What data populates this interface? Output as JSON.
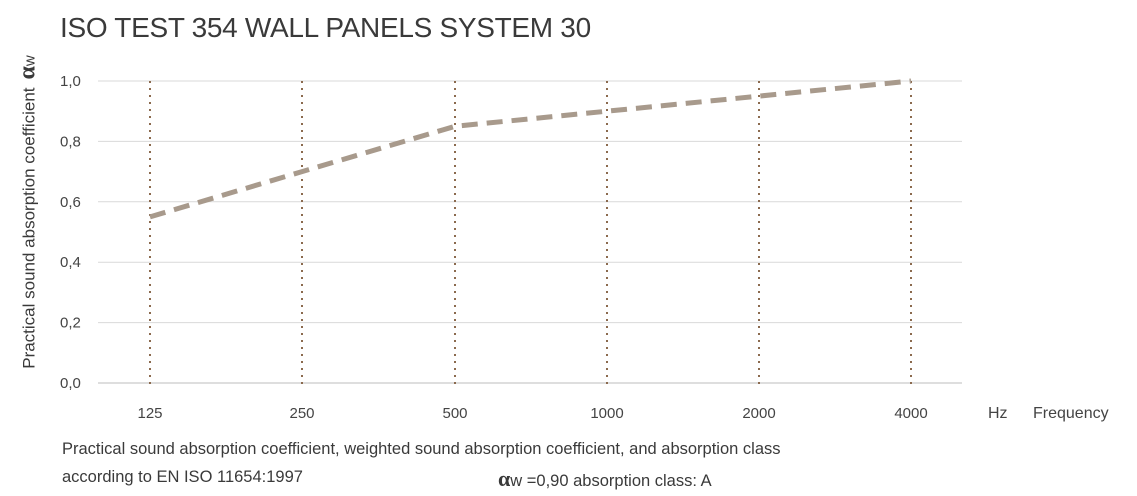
{
  "chart_data": {
    "type": "line",
    "title": "ISO TEST 354 WALL PANELS SYSTEM 30",
    "ylabel": "Practical sound absorption coefficient",
    "ylabel_symbol": "α",
    "ylabel_symbol_sub": "w",
    "x_unit": "Hz",
    "xlabel": "Frequency",
    "categories": [
      "125",
      "250",
      "500",
      "1000",
      "2000",
      "4000"
    ],
    "series": [
      {
        "values": [
          0.55,
          0.7,
          0.85,
          0.9,
          0.95,
          1.0
        ]
      }
    ],
    "ylim": [
      0,
      1.0
    ],
    "yticks": [
      "0,0",
      "0,2",
      "0,4",
      "0,6",
      "0,8",
      "1,0"
    ],
    "grid": true,
    "line_style": "dashed",
    "colors": {
      "line": "#a89a8c",
      "vgrid": "#8b6a4e",
      "hgrid": "#d9d9d9"
    }
  },
  "caption": {
    "line1": "Practical sound absorption coefficient, weighted sound absorption coefficient, and absorption class",
    "line2": "according to EN ISO 11654:1997",
    "result_symbol": "α",
    "result_text": "w =0,90 absorption class: A"
  }
}
